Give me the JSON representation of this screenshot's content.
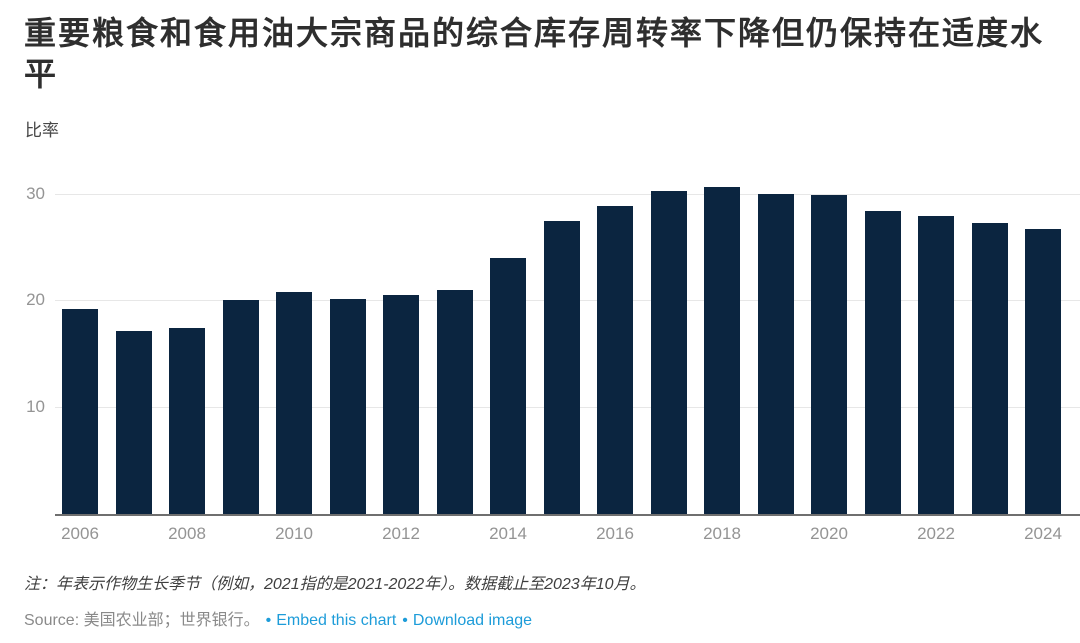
{
  "title": {
    "line1": "重要粮食和食用油大宗商品的综合库存周转率下降但仍保持在适度水",
    "line2": "平"
  },
  "unit_label": "比率",
  "chart_data": {
    "type": "bar",
    "title": "重要粮食和食用油大宗商品的综合库存周转率下降但仍保持在适度水平",
    "ylabel": "比率",
    "xlabel": "",
    "categories": [
      "2006",
      "2007",
      "2008",
      "2009",
      "2010",
      "2011",
      "2012",
      "2013",
      "2014",
      "2015",
      "2016",
      "2017",
      "2018",
      "2019",
      "2020",
      "2021",
      "2022",
      "2023",
      "2024"
    ],
    "values": [
      19.3,
      17.2,
      17.5,
      20.1,
      20.9,
      20.2,
      20.6,
      21.1,
      24.1,
      27.6,
      29.0,
      30.4,
      30.8,
      30.1,
      30.0,
      28.5,
      28.0,
      27.4,
      26.8
    ],
    "x_tick_labels": [
      "2006",
      "2008",
      "2010",
      "2012",
      "2014",
      "2016",
      "2018",
      "2020",
      "2022",
      "2024"
    ],
    "y_ticks": [
      10,
      20,
      30
    ],
    "ylim": [
      0,
      33
    ],
    "grid": true,
    "legend_position": "none",
    "bar_color": "#0b2540"
  },
  "note": "注：年表示作物生长季节（例如，2021指的是2021-2022年）。数据截止至2023年10月。",
  "source": {
    "prefix": "Source:",
    "text": "美国农业部；世界银行。",
    "bullet": "•",
    "embed_label": "Embed this chart",
    "download_label": "Download image"
  },
  "colors": {
    "bar": "#0b2540",
    "grid": "#e7e7e7",
    "axis_line": "#6f6f6f",
    "tick_label": "#949494",
    "link": "#1d9cd9",
    "title": "#2e2e2e"
  }
}
